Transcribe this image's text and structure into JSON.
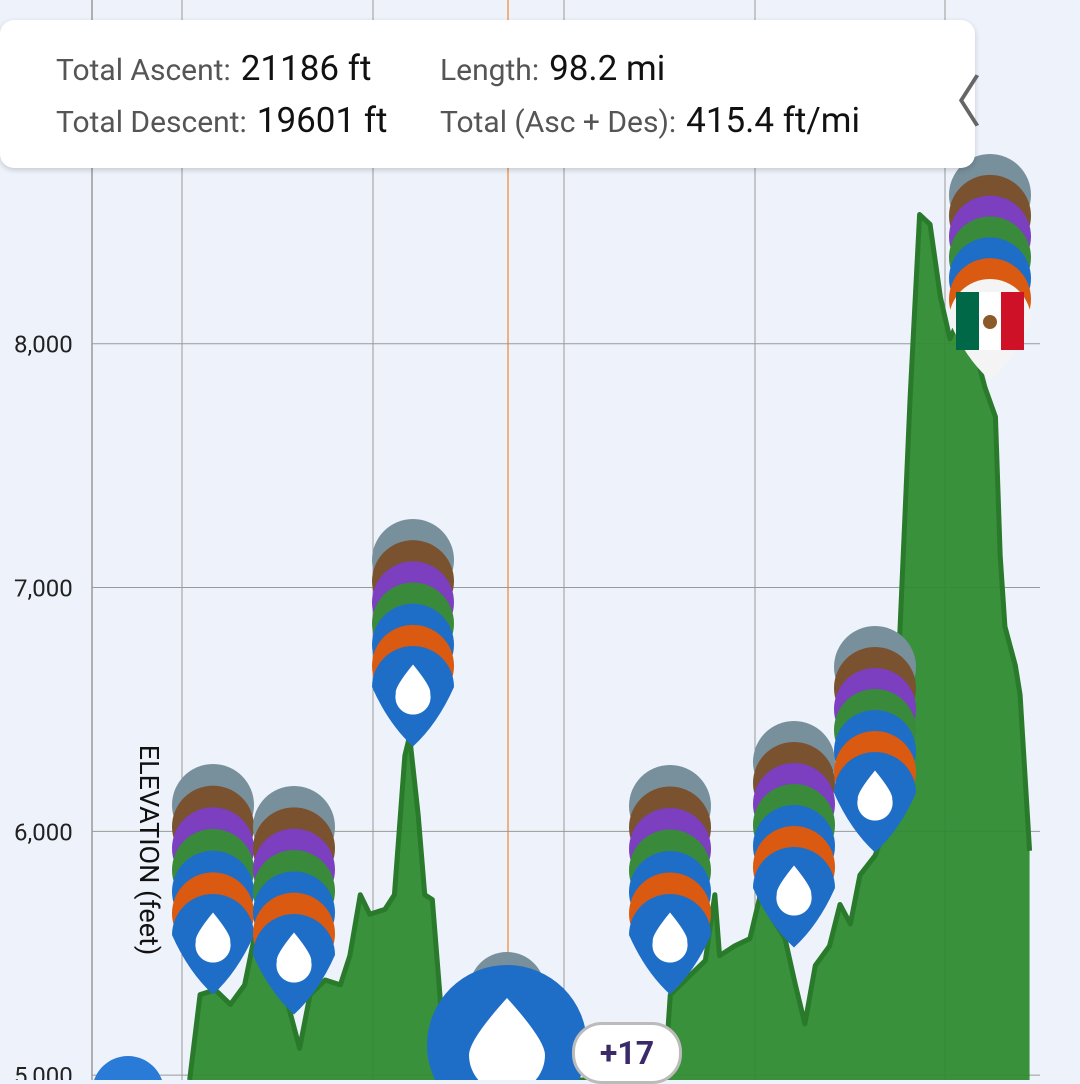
{
  "panel": {
    "rows": [
      [
        {
          "label": "Total Ascent:",
          "value": "21186 ft"
        },
        {
          "label": "Length:",
          "value": "98.2 mi"
        }
      ],
      [
        {
          "label": "Total Descent:",
          "value": "19601 ft"
        },
        {
          "label": "Total (Asc + Des):",
          "value": "415.4 ft/mi"
        }
      ]
    ]
  },
  "badge": "+17",
  "chart_data": {
    "type": "area",
    "y_label": "ELEVATION (feet)",
    "color": "#2e8b32",
    "grid": true,
    "xlim": [
      0,
      100
    ],
    "ylim": [
      4980,
      9410
    ],
    "yticks": [
      {
        "value": 5000,
        "label": "5,000"
      },
      {
        "value": 6000,
        "label": "6,000"
      },
      {
        "value": 7000,
        "label": "7,000"
      },
      {
        "value": 8000,
        "label": "8,000"
      }
    ],
    "x": [
      10.3,
      11.4,
      13.0,
      14.6,
      16.1,
      17.2,
      18.8,
      20.4,
      21.9,
      23.0,
      24.6,
      26.2,
      27.2,
      28.3,
      29.3,
      30.9,
      31.9,
      33.0,
      33.5,
      34.4,
      35.1,
      35.9,
      36.7,
      37.2,
      43.0,
      53.6,
      60.4,
      61.0,
      63.1,
      64.7,
      65.7,
      66.2,
      67.8,
      69.4,
      70.5,
      71.5,
      73.1,
      74.2,
      75.2,
      76.3,
      77.8,
      78.9,
      80.0,
      81.0,
      82.6,
      84.2,
      85.2,
      86.3,
      87.3,
      88.4,
      89.5,
      90.5,
      91.6,
      93.1,
      94.2,
      95.3,
      95.8,
      96.3,
      97.4,
      97.9,
      98.9
    ],
    "values": [
      4980,
      5330,
      5350,
      5290,
      5370,
      5580,
      5490,
      5330,
      5110,
      5330,
      5390,
      5370,
      5490,
      5740,
      5660,
      5680,
      5740,
      6310,
      6390,
      6070,
      5740,
      5720,
      5330,
      4980,
      4980,
      4980,
      4980,
      5330,
      5410,
      5470,
      5740,
      5490,
      5530,
      5560,
      5740,
      5660,
      5560,
      5370,
      5210,
      5450,
      5530,
      5700,
      5620,
      5820,
      5900,
      6070,
      6800,
      7780,
      8530,
      8490,
      8190,
      8020,
      8110,
      7980,
      7820,
      7700,
      7130,
      6840,
      6680,
      6560,
      5920
    ]
  }
}
